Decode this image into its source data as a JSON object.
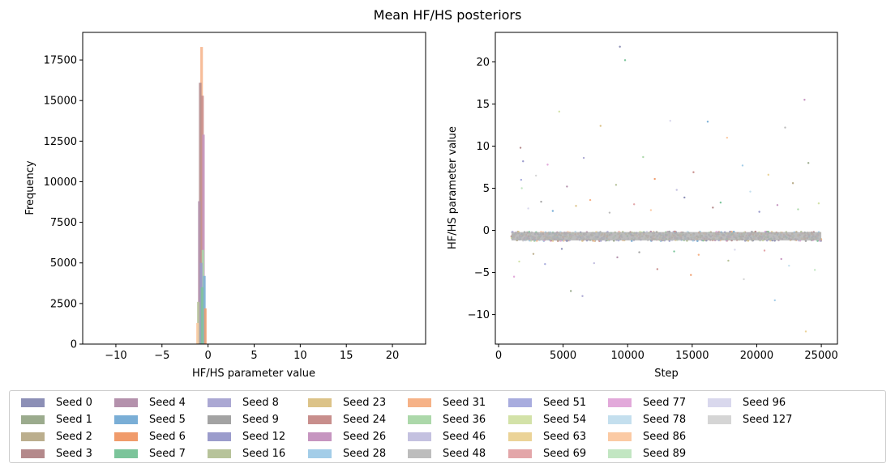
{
  "chart_data": {
    "title": "Mean HF/HS posteriors",
    "panels": [
      {
        "type": "histogram",
        "xlabel": "HF/HS parameter value",
        "ylabel": "Frequency",
        "xlim": [
          -13.6,
          23.6
        ],
        "ylim": [
          0,
          19200
        ],
        "xticks": [
          -10,
          -5,
          0,
          5,
          10,
          15,
          20
        ],
        "xtick_labels": [
          "−10",
          "−5",
          "0",
          "5",
          "10",
          "15",
          "20"
        ],
        "yticks": [
          0,
          2500,
          5000,
          7500,
          10000,
          12500,
          15000,
          17500
        ],
        "ytick_labels": [
          "0",
          "2500",
          "5000",
          "7500",
          "10000",
          "12500",
          "15000",
          "17500"
        ],
        "peaks": [
          {
            "seed": "Seed 31",
            "x": -0.7,
            "count": 18300
          },
          {
            "seed": "Seed 3",
            "x": -0.85,
            "count": 16100
          },
          {
            "seed": "Seed 24",
            "x": -0.6,
            "count": 15300
          },
          {
            "seed": "Seed 26",
            "x": -0.5,
            "count": 12900
          },
          {
            "seed": "Seed 4",
            "x": -0.95,
            "count": 8800
          },
          {
            "seed": "Seed 36",
            "x": -0.55,
            "count": 5800
          },
          {
            "seed": "Seed 12",
            "x": -0.75,
            "count": 5000
          },
          {
            "seed": "Seed 5",
            "x": -0.4,
            "count": 4200
          },
          {
            "seed": "Seed 7",
            "x": -0.65,
            "count": 3500
          },
          {
            "seed": "Seed 16",
            "x": -1.05,
            "count": 2600
          },
          {
            "seed": "Seed 6",
            "x": -0.3,
            "count": 2200
          },
          {
            "seed": "Seed 86",
            "x": -1.15,
            "count": 1300
          }
        ]
      },
      {
        "type": "scatter",
        "xlabel": "Step",
        "ylabel": "HF/HS parameter value",
        "xlim": [
          -250,
          26250
        ],
        "ylim": [
          -13.5,
          23.5
        ],
        "xticks": [
          0,
          5000,
          10000,
          15000,
          20000,
          25000
        ],
        "xtick_labels": [
          "0",
          "5000",
          "10000",
          "15000",
          "20000",
          "25000"
        ],
        "yticks": [
          -10,
          -5,
          0,
          5,
          10,
          15,
          20
        ],
        "ytick_labels": [
          "−10",
          "−5",
          "0",
          "5",
          "10",
          "15",
          "20"
        ],
        "band": {
          "x_range": [
            1000,
            25000
          ],
          "y_center": -0.7,
          "half_width": 0.55
        },
        "points": [
          [
            9400,
            21.8
          ],
          [
            9800,
            20.2
          ],
          [
            23700,
            15.5
          ],
          [
            4700,
            14.1
          ],
          [
            13300,
            13.0
          ],
          [
            16200,
            12.9
          ],
          [
            7900,
            12.4
          ],
          [
            22200,
            12.2
          ],
          [
            17700,
            11.0
          ],
          [
            1700,
            9.8
          ],
          [
            1900,
            8.2
          ],
          [
            11200,
            8.7
          ],
          [
            3800,
            7.8
          ],
          [
            24000,
            8.0
          ],
          [
            6600,
            8.6
          ],
          [
            18900,
            7.7
          ],
          [
            20900,
            6.6
          ],
          [
            2900,
            6.5
          ],
          [
            12100,
            6.1
          ],
          [
            15100,
            6.9
          ],
          [
            1750,
            6.0
          ],
          [
            1800,
            5.0
          ],
          [
            5300,
            5.2
          ],
          [
            9100,
            5.4
          ],
          [
            13800,
            4.8
          ],
          [
            19500,
            4.6
          ],
          [
            22800,
            5.6
          ],
          [
            3300,
            3.4
          ],
          [
            7100,
            3.6
          ],
          [
            10500,
            3.1
          ],
          [
            14400,
            3.9
          ],
          [
            17200,
            3.3
          ],
          [
            21600,
            3.0
          ],
          [
            24800,
            3.2
          ],
          [
            2300,
            2.6
          ],
          [
            4200,
            2.3
          ],
          [
            6000,
            2.9
          ],
          [
            8600,
            2.1
          ],
          [
            11800,
            2.4
          ],
          [
            16600,
            2.7
          ],
          [
            20200,
            2.2
          ],
          [
            23200,
            2.5
          ],
          [
            1200,
            -5.5
          ],
          [
            5600,
            -7.2
          ],
          [
            6500,
            -7.8
          ],
          [
            21400,
            -8.3
          ],
          [
            23800,
            -12.0
          ],
          [
            19000,
            -5.8
          ],
          [
            14900,
            -5.3
          ],
          [
            12300,
            -4.6
          ],
          [
            3600,
            -4.0
          ],
          [
            24500,
            -4.7
          ],
          [
            9200,
            -3.2
          ],
          [
            17800,
            -3.6
          ],
          [
            7400,
            -3.9
          ],
          [
            22500,
            -4.2
          ],
          [
            2700,
            -2.8
          ],
          [
            10900,
            -2.6
          ],
          [
            15500,
            -2.9
          ],
          [
            20600,
            -2.4
          ],
          [
            4900,
            -2.2
          ],
          [
            13600,
            -2.5
          ],
          [
            21900,
            -3.4
          ],
          [
            1600,
            -3.7
          ],
          [
            18300,
            -2.3
          ]
        ]
      }
    ],
    "legend": [
      {
        "label": "Seed 0",
        "color": "#8c8fb6"
      },
      {
        "label": "Seed 1",
        "color": "#9bab8d"
      },
      {
        "label": "Seed 2",
        "color": "#bbae8d"
      },
      {
        "label": "Seed 3",
        "color": "#b4898b"
      },
      {
        "label": "Seed 4",
        "color": "#b491ac"
      },
      {
        "label": "Seed 5",
        "color": "#7aaed6"
      },
      {
        "label": "Seed 6",
        "color": "#f09b6b"
      },
      {
        "label": "Seed 7",
        "color": "#7bc49a"
      },
      {
        "label": "Seed 8",
        "color": "#aba8d3"
      },
      {
        "label": "Seed 9",
        "color": "#a3a3a3"
      },
      {
        "label": "Seed 12",
        "color": "#9b9ccc"
      },
      {
        "label": "Seed 16",
        "color": "#b7c39a"
      },
      {
        "label": "Seed 23",
        "color": "#dcc388"
      },
      {
        "label": "Seed 24",
        "color": "#c88e8c"
      },
      {
        "label": "Seed 26",
        "color": "#c695c0"
      },
      {
        "label": "Seed 28",
        "color": "#a3cde8"
      },
      {
        "label": "Seed 31",
        "color": "#f6b287"
      },
      {
        "label": "Seed 36",
        "color": "#acd8aa"
      },
      {
        "label": "Seed 46",
        "color": "#c4c1e0"
      },
      {
        "label": "Seed 48",
        "color": "#bdbdbd"
      },
      {
        "label": "Seed 51",
        "color": "#a8acde"
      },
      {
        "label": "Seed 54",
        "color": "#d3e2a8"
      },
      {
        "label": "Seed 63",
        "color": "#ebd397"
      },
      {
        "label": "Seed 69",
        "color": "#e3a6a9"
      },
      {
        "label": "Seed 77",
        "color": "#e2a9da"
      },
      {
        "label": "Seed 78",
        "color": "#c4dfee"
      },
      {
        "label": "Seed 86",
        "color": "#fbcaa4"
      },
      {
        "label": "Seed 89",
        "color": "#c2e6c2"
      },
      {
        "label": "Seed 96",
        "color": "#d9d8ed"
      },
      {
        "label": "Seed 127",
        "color": "#d5d5d5"
      }
    ]
  }
}
